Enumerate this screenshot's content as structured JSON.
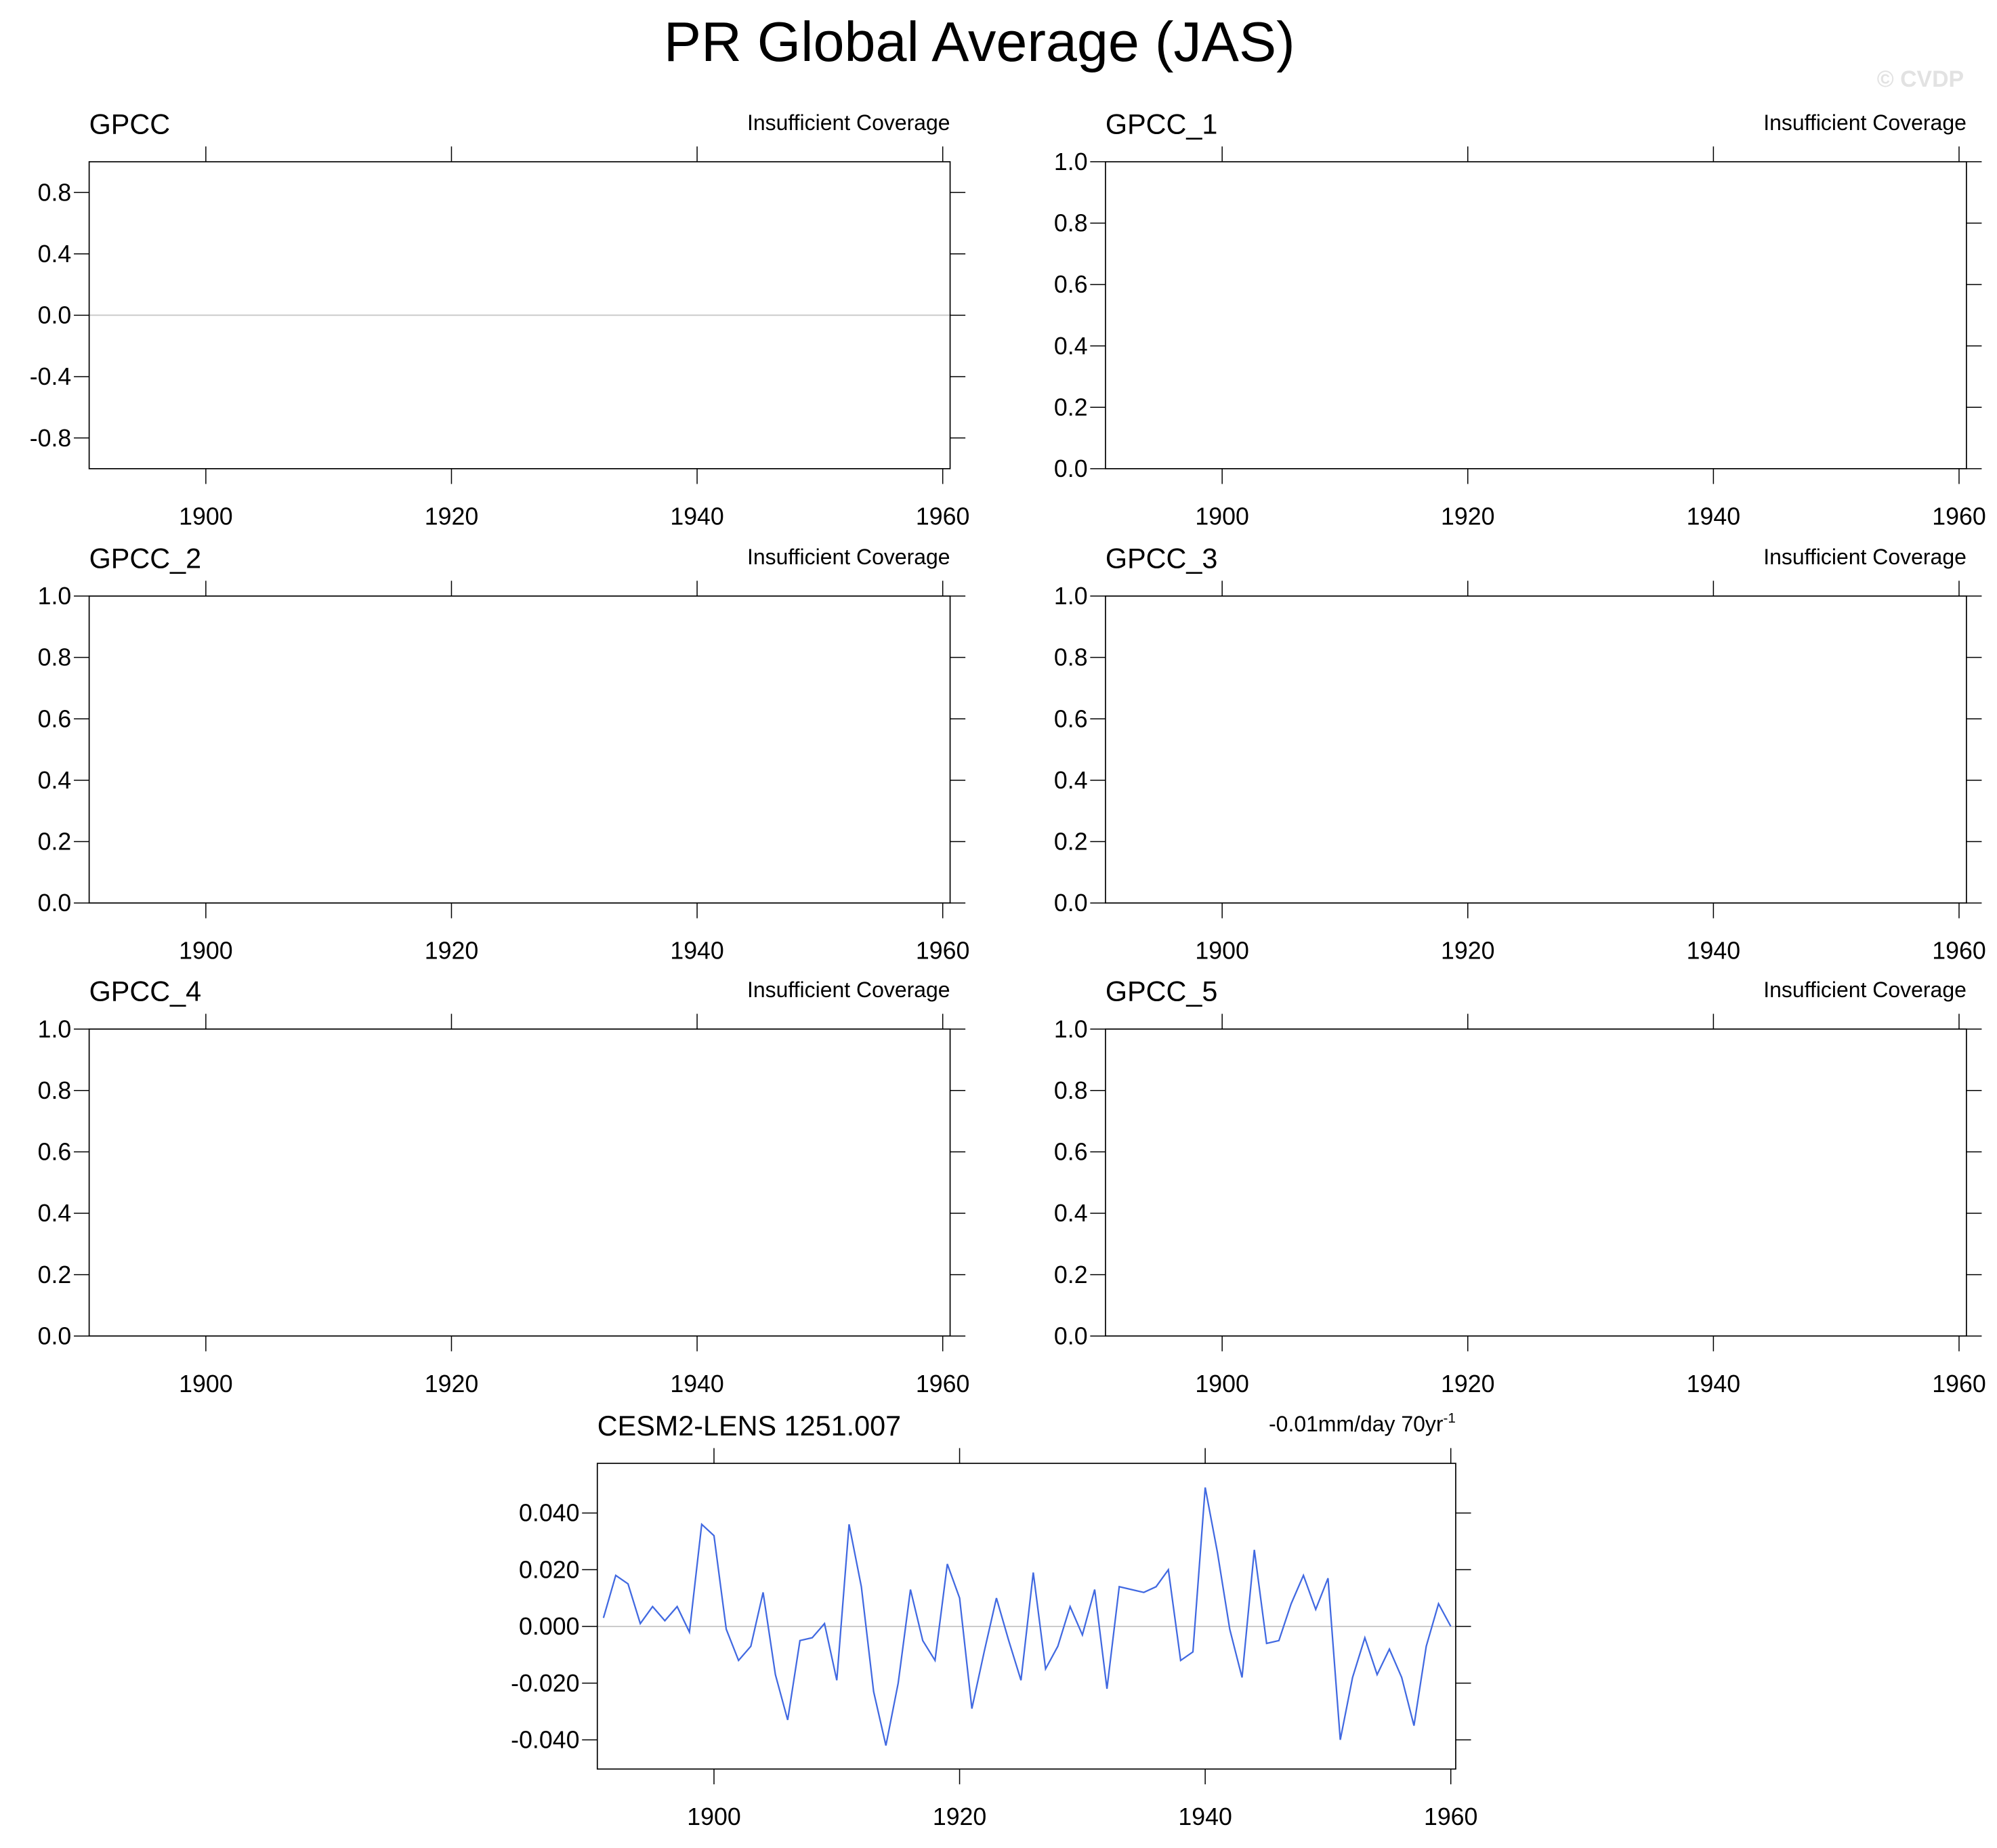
{
  "title": "PR Global Average (JAS)",
  "watermark": "© CVDP",
  "chart_data": [
    {
      "type": "line",
      "title": "GPCC",
      "annotation": "Insufficient Coverage",
      "xlim": [
        1890.5,
        1960.6
      ],
      "xticks": [
        1900,
        1920,
        1940,
        1960
      ],
      "ylim": [
        -1,
        1
      ],
      "yticks": [
        {
          "value": -0.8,
          "label": "-0.8"
        },
        {
          "value": -0.4,
          "label": "-0.4"
        },
        {
          "value": 0,
          "label": "0.0"
        },
        0.4,
        0.8
      ],
      "hline": 0
    },
    {
      "type": "line",
      "title": "GPCC_1",
      "annotation": "Insufficient Coverage",
      "xlim": [
        1890.5,
        1960.6
      ],
      "xticks": [
        1900,
        1920,
        1940,
        1960
      ],
      "ylim": [
        0,
        1
      ],
      "yticks": [
        {
          "value": 0,
          "label": "0.0"
        },
        0.2,
        0.4,
        0.6,
        0.8,
        {
          "value": 1,
          "label": "1.0"
        }
      ]
    },
    {
      "type": "line",
      "title": "GPCC_2",
      "annotation": "Insufficient Coverage",
      "xlim": [
        1890.5,
        1960.6
      ],
      "xticks": [
        1900,
        1920,
        1940,
        1960
      ],
      "ylim": [
        0,
        1
      ],
      "yticks": [
        {
          "value": 0,
          "label": "0.0"
        },
        0.2,
        0.4,
        0.6,
        0.8,
        {
          "value": 1,
          "label": "1.0"
        }
      ]
    },
    {
      "type": "line",
      "title": "GPCC_3",
      "annotation": "Insufficient Coverage",
      "xlim": [
        1890.5,
        1960.6
      ],
      "xticks": [
        1900,
        1920,
        1940,
        1960
      ],
      "ylim": [
        0,
        1
      ],
      "yticks": [
        {
          "value": 0,
          "label": "0.0"
        },
        0.2,
        0.4,
        0.6,
        0.8,
        {
          "value": 1,
          "label": "1.0"
        }
      ]
    },
    {
      "type": "line",
      "title": "GPCC_4",
      "annotation": "Insufficient Coverage",
      "xlim": [
        1890.5,
        1960.6
      ],
      "xticks": [
        1900,
        1920,
        1940,
        1960
      ],
      "ylim": [
        0,
        1
      ],
      "yticks": [
        {
          "value": 0,
          "label": "0.0"
        },
        0.2,
        0.4,
        0.6,
        0.8,
        {
          "value": 1,
          "label": "1.0"
        }
      ]
    },
    {
      "type": "line",
      "title": "GPCC_5",
      "annotation": "Insufficient Coverage",
      "xlim": [
        1890.5,
        1960.6
      ],
      "xticks": [
        1900,
        1920,
        1940,
        1960
      ],
      "ylim": [
        0,
        1
      ],
      "yticks": [
        {
          "value": 0,
          "label": "0.0"
        },
        0.2,
        0.4,
        0.6,
        0.8,
        {
          "value": 1,
          "label": "1.0"
        }
      ]
    },
    {
      "type": "line",
      "title": "CESM2-LENS 1251.007",
      "annotation": "-0.01mm/day 70yr",
      "annotation_superscript": "-1",
      "xlim": [
        1890.5,
        1960.4
      ],
      "xticks": [
        1900,
        1920,
        1940,
        1960
      ],
      "ylim": [
        -0.0503,
        0.0575
      ],
      "yticks": [
        {
          "value": -0.04,
          "label": "-0.040"
        },
        {
          "value": -0.02,
          "label": "-0.020"
        },
        {
          "value": 0,
          "label": "0.000"
        },
        {
          "value": 0.02,
          "label": "0.020"
        },
        {
          "value": 0.04,
          "label": "0.040"
        }
      ],
      "hline": 0,
      "x": [
        1891,
        1892,
        1893,
        1894,
        1895,
        1896,
        1897,
        1898,
        1899,
        1900,
        1901,
        1902,
        1903,
        1904,
        1905,
        1906,
        1907,
        1908,
        1909,
        1910,
        1911,
        1912,
        1913,
        1914,
        1915,
        1916,
        1917,
        1918,
        1919,
        1920,
        1921,
        1922,
        1923,
        1924,
        1925,
        1926,
        1927,
        1928,
        1929,
        1930,
        1931,
        1932,
        1933,
        1934,
        1935,
        1936,
        1937,
        1938,
        1939,
        1940,
        1941,
        1942,
        1943,
        1944,
        1945,
        1946,
        1947,
        1948,
        1949,
        1950,
        1951,
        1952,
        1953,
        1954,
        1955,
        1956,
        1957,
        1958,
        1959,
        1960
      ],
      "series": [
        {
          "color": "#4169e1",
          "values": [
            0.003,
            0.018,
            0.015,
            0.001,
            0.007,
            0.002,
            0.007,
            -0.002,
            0.036,
            0.032,
            -0.001,
            -0.012,
            -0.007,
            0.012,
            -0.017,
            -0.033,
            -0.005,
            -0.004,
            0.001,
            -0.019,
            0.036,
            0.014,
            -0.023,
            -0.042,
            -0.02,
            0.013,
            -0.005,
            -0.012,
            0.022,
            0.01,
            -0.029,
            -0.009,
            0.01,
            -0.005,
            -0.019,
            0.019,
            -0.015,
            -0.007,
            0.007,
            -0.003,
            0.013,
            -0.022,
            0.014,
            0.013,
            0.012,
            0.014,
            0.02,
            -0.012,
            -0.009,
            0.049,
            0.026,
            -0.001,
            -0.018,
            0.027,
            -0.006,
            -0.005,
            0.008,
            0.018,
            0.006,
            0.017,
            -0.04,
            -0.018,
            -0.004,
            -0.017,
            -0.008,
            -0.018,
            -0.035,
            -0.007,
            0.008,
            0.0
          ]
        }
      ]
    }
  ]
}
